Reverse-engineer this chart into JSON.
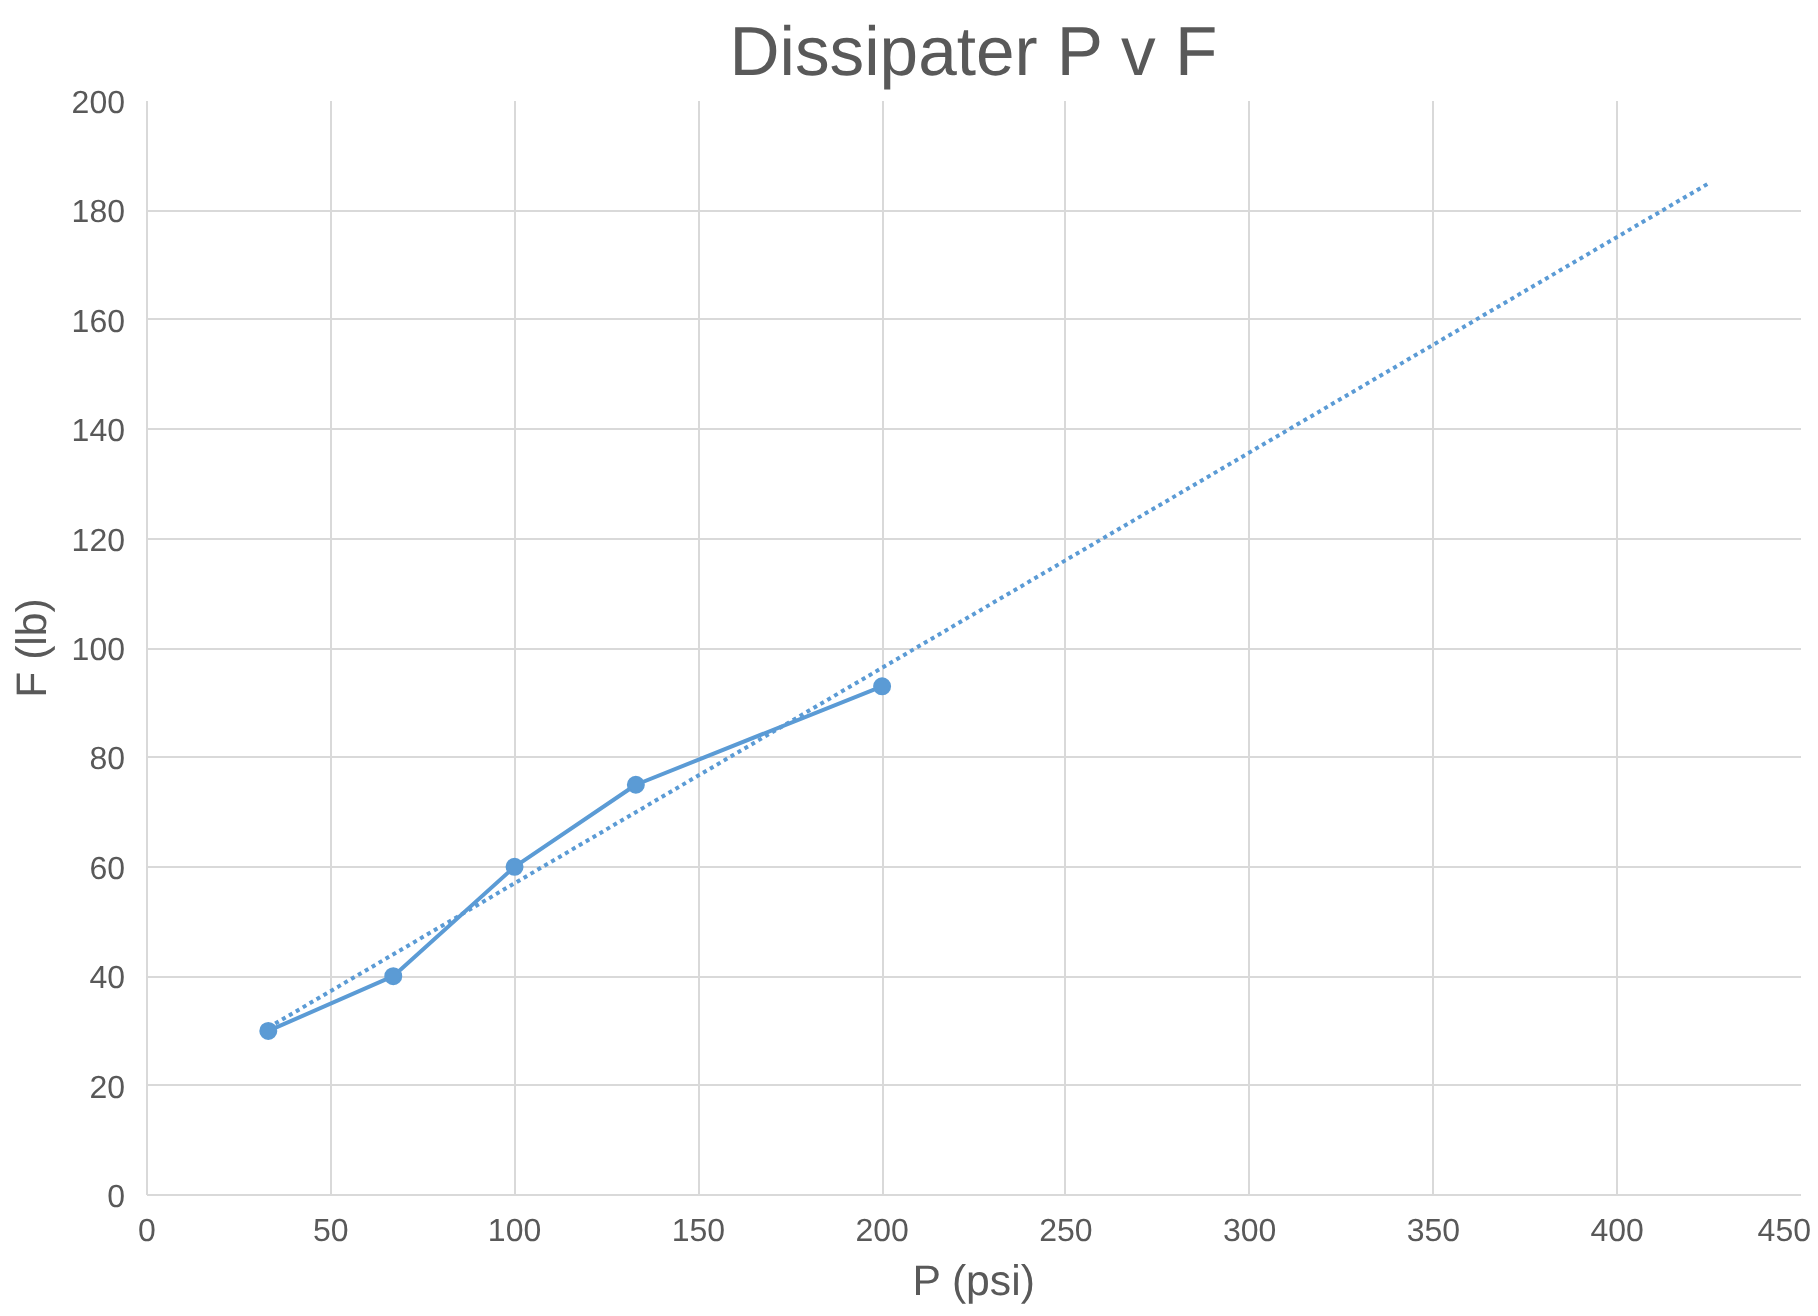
{
  "chart_data": {
    "type": "line",
    "title": "Dissipater P v F",
    "xlabel": "P (psi)",
    "ylabel": "F (lb)",
    "xlim": [
      0,
      450
    ],
    "xticks": [
      0,
      50,
      100,
      150,
      200,
      250,
      300,
      350,
      400,
      450
    ],
    "ylim": [
      0,
      200
    ],
    "yticks": [
      0,
      20,
      40,
      60,
      80,
      100,
      120,
      140,
      160,
      180,
      200
    ],
    "grid": true,
    "marker": "circle",
    "line_style": "solid",
    "series": [
      {
        "x": [
          33,
          67,
          100,
          133,
          200
        ],
        "values": [
          30,
          40,
          60,
          75,
          93
        ],
        "color": "#5b9bd5"
      },
      {
        "x": [
          33,
          425
        ],
        "values": [
          30.6,
          185
        ],
        "color": "#5b9bd5",
        "marker": "none",
        "line_style": "dotted"
      }
    ]
  }
}
